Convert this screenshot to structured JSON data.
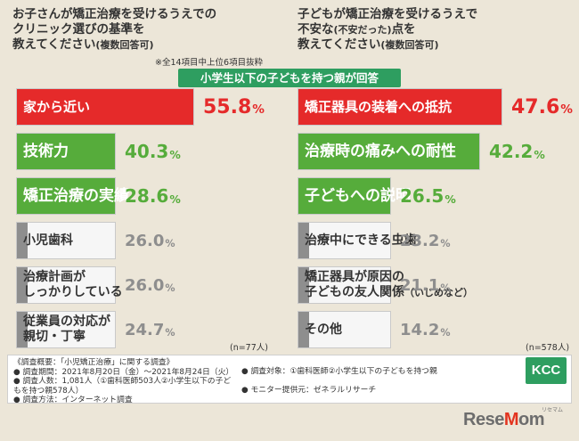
{
  "questions": {
    "left": {
      "line1": "お子さんが矯正治療を受けるうえでの",
      "line2": "クリニック選びの基準を",
      "line3_main": "教えてください",
      "line3_sub": "(複数回答可)"
    },
    "right": {
      "line1": "子どもが矯正治療を受けるうえで",
      "line2_a": "不安な",
      "line2_sub": "(不安だった)",
      "line2_b": "点を",
      "line3_main": "教えてください",
      "line3_sub": "(複数回答可)"
    }
  },
  "note": "※全14項目中上位6項目抜粋",
  "banner": "小学生以下の子どもを持つ親が回答",
  "sample_sizes": {
    "left": "(n=77人)",
    "right": "(n=578人)"
  },
  "chart_data": [
    {
      "type": "bar",
      "categories": [
        "家から近い",
        "技術力",
        "矯正治療の実績",
        "小児歯科",
        "治療計画がしっかりしている",
        "従業員の対応が親切・丁寧"
      ],
      "values": [
        55.8,
        40.3,
        28.6,
        26.0,
        26.0,
        24.7
      ],
      "value_unit": "%",
      "xlim": [
        0,
        100
      ],
      "rows": [
        {
          "label": "家から近い",
          "int": "55",
          "dec": ".8",
          "pct": "%",
          "color": "#e52a2a",
          "onbar": true
        },
        {
          "label": "技術力",
          "int": "40",
          "dec": ".3",
          "pct": "%",
          "color": "#56ac3b",
          "onbar": true
        },
        {
          "label": "矯正治療の実績",
          "int": "28",
          "dec": ".6",
          "pct": "%",
          "color": "#56ac3b",
          "onbar": true
        },
        {
          "label": "小児歯科",
          "int": "26",
          "dec": ".0",
          "pct": "%",
          "color": "#8e8e8e",
          "onbar": false
        },
        {
          "label": "治療計画が|しっかりしている",
          "int": "26",
          "dec": ".0",
          "pct": "%",
          "color": "#8e8e8e",
          "onbar": false
        },
        {
          "label": "従業員の対応が|親切・丁寧",
          "int": "24",
          "dec": ".7",
          "pct": "%",
          "color": "#8e8e8e",
          "onbar": false
        }
      ]
    },
    {
      "type": "bar",
      "categories": [
        "矯正器具の装着への抵抗",
        "治療時の痛みへの耐性",
        "子どもへの説明",
        "治療中にできる虫歯",
        "矯正器具が原因の子どもの友人関係（いじめなど）",
        "その他"
      ],
      "values": [
        47.6,
        42.2,
        26.5,
        23.2,
        21.1,
        14.2
      ],
      "value_unit": "%",
      "xlim": [
        0,
        100
      ],
      "rows": [
        {
          "label": "矯正器具の装着への抵抗",
          "int": "47",
          "dec": ".6",
          "pct": "%",
          "color": "#e52a2a",
          "onbar": true
        },
        {
          "label": "治療時の痛みへの耐性",
          "int": "42",
          "dec": ".2",
          "pct": "%",
          "color": "#56ac3b",
          "onbar": true
        },
        {
          "label": "子どもへの説明",
          "int": "26",
          "dec": ".5",
          "pct": "%",
          "color": "#56ac3b",
          "onbar": true
        },
        {
          "label": "治療中にできる虫歯",
          "int": "23",
          "dec": ".2",
          "pct": "%",
          "color": "#8e8e8e",
          "onbar": false
        },
        {
          "label": "矯正器具が原因の|子どもの友人関係",
          "label_sub": "（いじめなど）",
          "int": "21",
          "dec": ".1",
          "pct": "%",
          "color": "#8e8e8e",
          "onbar": false
        },
        {
          "label": "その他",
          "int": "14",
          "dec": ".2",
          "pct": "%",
          "color": "#8e8e8e",
          "onbar": false
        }
      ]
    }
  ],
  "footer": {
    "title": "《調査概要：「小児矯正治療」に関する調査》",
    "lines_left": [
      "● 調査期間：2021年8月20日（金）〜2021年8月24日（火）",
      "● 調査人数：1,081人（①歯科医師503人②小学生以下の子どもを持つ親578人）",
      "● 調査方法：インターネット調査"
    ],
    "lines_right": [
      "● 調査対象：①歯科医師②小学生以下の子どもを持つ親",
      "",
      "● モニター提供元：ゼネラルリサーチ"
    ]
  },
  "logo": "KCC",
  "brand": {
    "main": "ReseMom",
    "small": "リセマム"
  }
}
